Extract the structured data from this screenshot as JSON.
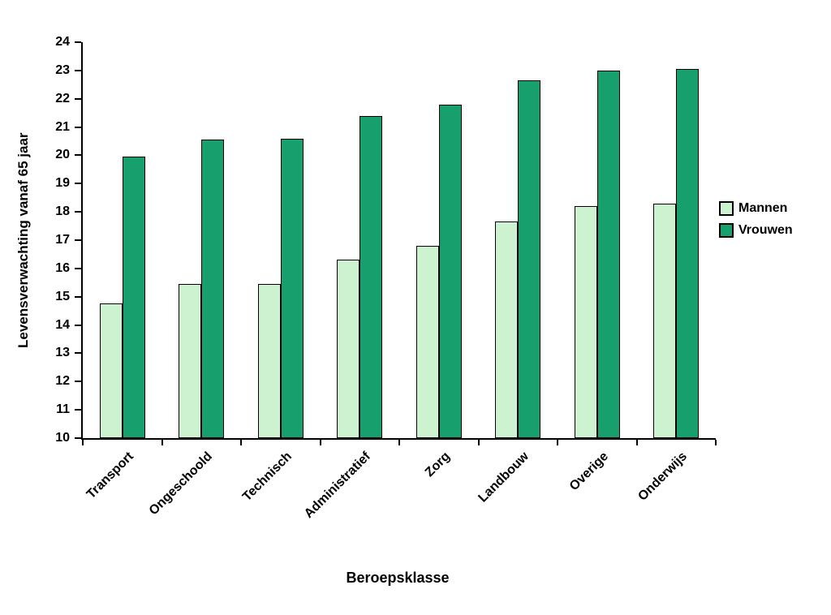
{
  "chart_data": {
    "type": "bar",
    "title": "",
    "xlabel": "Beroepsklasse",
    "ylabel": "Levensverwachting vanaf 65 jaar",
    "categories": [
      "Transport",
      "Ongeschoold",
      "Technisch",
      "Administratief",
      "Zorg",
      "Landbouw",
      "Overige",
      "Onderwijs"
    ],
    "series": [
      {
        "name": "Mannen",
        "color": "#ccf2d0",
        "values": [
          14.75,
          15.45,
          15.45,
          16.3,
          16.8,
          17.65,
          18.2,
          18.3
        ]
      },
      {
        "name": "Vrouwen",
        "color": "#17a06e",
        "values": [
          19.95,
          20.55,
          20.6,
          21.4,
          21.8,
          22.65,
          23.0,
          23.05
        ]
      }
    ],
    "ylim": [
      10,
      24
    ],
    "ytick_step": 1,
    "grid": false,
    "legend_position": "right",
    "bar_border_color": "#000000"
  }
}
